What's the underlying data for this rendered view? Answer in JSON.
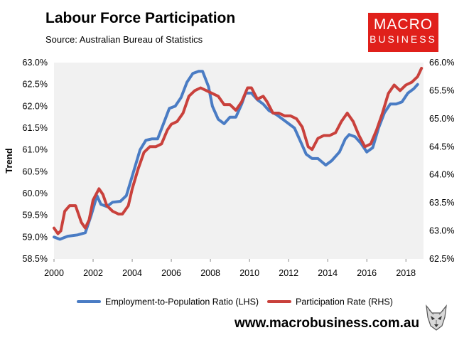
{
  "header": {
    "title": "Labour Force Participation",
    "subtitle": "Source: Australian Bureau of Statistics"
  },
  "logo": {
    "line1": "MACRO",
    "line2": "BUSINESS"
  },
  "footer": {
    "website": "www.macrobusiness.com.au"
  },
  "colors": {
    "series_lhs": "#4a7cc4",
    "series_rhs": "#c9413c",
    "plot_bg": "#f1f1f1",
    "logo_bg": "#e0201b"
  },
  "chart_data": {
    "type": "line",
    "ylabel": "Trend",
    "grid": false,
    "legend_position": "bottom",
    "xlim": [
      2000,
      2018.9
    ],
    "ylim_left": [
      58.5,
      63.0
    ],
    "ylim_right": [
      62.5,
      66.0
    ],
    "x_ticks": [
      2000,
      2002,
      2004,
      2006,
      2008,
      2010,
      2012,
      2014,
      2016,
      2018
    ],
    "y_ticks_left": [
      "58.5%",
      "59.0%",
      "59.5%",
      "60.0%",
      "60.5%",
      "61.0%",
      "61.5%",
      "62.0%",
      "62.5%",
      "63.0%"
    ],
    "y_ticks_right": [
      "62.5%",
      "63.0%",
      "63.5%",
      "64.0%",
      "64.5%",
      "65.0%",
      "65.5%",
      "66.0%"
    ],
    "series": [
      {
        "name": "Employment-to-Population Ratio (LHS)",
        "axis": "left",
        "points": [
          [
            2000.0,
            59.0
          ],
          [
            2000.3,
            58.95
          ],
          [
            2000.7,
            59.02
          ],
          [
            2001.2,
            59.05
          ],
          [
            2001.6,
            59.1
          ],
          [
            2001.9,
            59.5
          ],
          [
            2002.2,
            59.95
          ],
          [
            2002.4,
            59.75
          ],
          [
            2002.7,
            59.7
          ],
          [
            2003.0,
            59.8
          ],
          [
            2003.4,
            59.82
          ],
          [
            2003.7,
            59.95
          ],
          [
            2004.0,
            60.4
          ],
          [
            2004.4,
            61.0
          ],
          [
            2004.7,
            61.22
          ],
          [
            2005.0,
            61.25
          ],
          [
            2005.3,
            61.25
          ],
          [
            2005.6,
            61.6
          ],
          [
            2005.9,
            61.95
          ],
          [
            2006.2,
            62.0
          ],
          [
            2006.5,
            62.2
          ],
          [
            2006.8,
            62.55
          ],
          [
            2007.1,
            62.75
          ],
          [
            2007.4,
            62.8
          ],
          [
            2007.6,
            62.8
          ],
          [
            2007.9,
            62.45
          ],
          [
            2008.1,
            62.0
          ],
          [
            2008.4,
            61.7
          ],
          [
            2008.7,
            61.6
          ],
          [
            2009.0,
            61.75
          ],
          [
            2009.3,
            61.75
          ],
          [
            2009.6,
            62.05
          ],
          [
            2009.8,
            62.3
          ],
          [
            2010.1,
            62.3
          ],
          [
            2010.4,
            62.15
          ],
          [
            2010.7,
            62.05
          ],
          [
            2011.0,
            61.9
          ],
          [
            2011.4,
            61.8
          ],
          [
            2011.7,
            61.7
          ],
          [
            2012.0,
            61.6
          ],
          [
            2012.3,
            61.5
          ],
          [
            2012.6,
            61.2
          ],
          [
            2012.9,
            60.9
          ],
          [
            2013.2,
            60.8
          ],
          [
            2013.5,
            60.8
          ],
          [
            2013.9,
            60.65
          ],
          [
            2014.2,
            60.75
          ],
          [
            2014.6,
            60.95
          ],
          [
            2014.9,
            61.25
          ],
          [
            2015.1,
            61.35
          ],
          [
            2015.4,
            61.3
          ],
          [
            2015.7,
            61.15
          ],
          [
            2016.0,
            60.95
          ],
          [
            2016.3,
            61.05
          ],
          [
            2016.6,
            61.5
          ],
          [
            2016.9,
            61.85
          ],
          [
            2017.2,
            62.05
          ],
          [
            2017.5,
            62.05
          ],
          [
            2017.8,
            62.1
          ],
          [
            2018.1,
            62.3
          ],
          [
            2018.4,
            62.4
          ],
          [
            2018.6,
            62.5
          ]
        ]
      },
      {
        "name": "Participation Rate (RHS)",
        "axis": "right",
        "points": [
          [
            2000.0,
            63.05
          ],
          [
            2000.2,
            62.95
          ],
          [
            2000.35,
            63.0
          ],
          [
            2000.55,
            63.35
          ],
          [
            2000.8,
            63.45
          ],
          [
            2001.1,
            63.45
          ],
          [
            2001.4,
            63.15
          ],
          [
            2001.6,
            63.05
          ],
          [
            2001.8,
            63.2
          ],
          [
            2002.0,
            63.55
          ],
          [
            2002.3,
            63.75
          ],
          [
            2002.5,
            63.65
          ],
          [
            2002.7,
            63.45
          ],
          [
            2003.0,
            63.35
          ],
          [
            2003.3,
            63.3
          ],
          [
            2003.5,
            63.3
          ],
          [
            2003.8,
            63.45
          ],
          [
            2004.0,
            63.75
          ],
          [
            2004.3,
            64.1
          ],
          [
            2004.6,
            64.4
          ],
          [
            2004.9,
            64.5
          ],
          [
            2005.2,
            64.5
          ],
          [
            2005.5,
            64.55
          ],
          [
            2005.8,
            64.8
          ],
          [
            2006.0,
            64.9
          ],
          [
            2006.3,
            64.95
          ],
          [
            2006.6,
            65.1
          ],
          [
            2006.9,
            65.4
          ],
          [
            2007.2,
            65.5
          ],
          [
            2007.5,
            65.55
          ],
          [
            2007.8,
            65.5
          ],
          [
            2008.1,
            65.45
          ],
          [
            2008.4,
            65.4
          ],
          [
            2008.7,
            65.25
          ],
          [
            2009.0,
            65.25
          ],
          [
            2009.3,
            65.15
          ],
          [
            2009.6,
            65.3
          ],
          [
            2009.9,
            65.55
          ],
          [
            2010.1,
            65.55
          ],
          [
            2010.4,
            65.35
          ],
          [
            2010.7,
            65.4
          ],
          [
            2010.9,
            65.3
          ],
          [
            2011.2,
            65.1
          ],
          [
            2011.5,
            65.1
          ],
          [
            2011.8,
            65.05
          ],
          [
            2012.1,
            65.05
          ],
          [
            2012.4,
            65.0
          ],
          [
            2012.7,
            64.85
          ],
          [
            2013.0,
            64.5
          ],
          [
            2013.2,
            64.45
          ],
          [
            2013.5,
            64.65
          ],
          [
            2013.8,
            64.7
          ],
          [
            2014.1,
            64.7
          ],
          [
            2014.4,
            64.75
          ],
          [
            2014.7,
            64.95
          ],
          [
            2015.0,
            65.1
          ],
          [
            2015.3,
            64.95
          ],
          [
            2015.6,
            64.7
          ],
          [
            2015.9,
            64.5
          ],
          [
            2016.2,
            64.55
          ],
          [
            2016.5,
            64.8
          ],
          [
            2016.8,
            65.1
          ],
          [
            2017.1,
            65.45
          ],
          [
            2017.4,
            65.6
          ],
          [
            2017.7,
            65.5
          ],
          [
            2018.0,
            65.6
          ],
          [
            2018.3,
            65.65
          ],
          [
            2018.6,
            65.75
          ],
          [
            2018.8,
            65.9
          ]
        ]
      }
    ]
  }
}
